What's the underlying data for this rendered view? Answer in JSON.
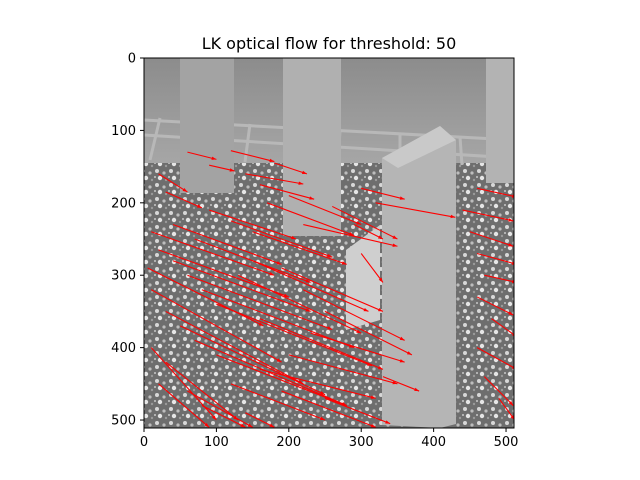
{
  "chart_data": {
    "type": "image-with-vector-overlay",
    "title": "LK optical flow for threshold: 50",
    "xlabel": "",
    "ylabel": "",
    "xlim": [
      0,
      511
    ],
    "ylim": [
      511,
      0
    ],
    "x_ticks": [
      0,
      100,
      200,
      300,
      400,
      500
    ],
    "y_ticks": [
      0,
      100,
      200,
      300,
      400,
      500
    ],
    "grid": false,
    "legend": "none",
    "arrow_color": "#ff0000",
    "background": "grayscale rendered scene: gravel ground, grid floor and square concrete pillars",
    "flow_field": [
      {
        "x": 60,
        "y": 130,
        "dx": 40,
        "dy": 10
      },
      {
        "x": 90,
        "y": 148,
        "dx": 35,
        "dy": 8
      },
      {
        "x": 120,
        "y": 128,
        "dx": 60,
        "dy": 15
      },
      {
        "x": 140,
        "y": 160,
        "dx": 80,
        "dy": 14
      },
      {
        "x": 160,
        "y": 175,
        "dx": 75,
        "dy": 20
      },
      {
        "x": 180,
        "y": 145,
        "dx": 45,
        "dy": 15
      },
      {
        "x": 20,
        "y": 160,
        "dx": 40,
        "dy": 25
      },
      {
        "x": 30,
        "y": 185,
        "dx": 50,
        "dy": 22
      },
      {
        "x": 300,
        "y": 180,
        "dx": 60,
        "dy": 15
      },
      {
        "x": 320,
        "y": 200,
        "dx": 110,
        "dy": 20
      },
      {
        "x": 460,
        "y": 180,
        "dx": 55,
        "dy": 12
      },
      {
        "x": 440,
        "y": 210,
        "dx": 70,
        "dy": 15
      },
      {
        "x": 450,
        "y": 240,
        "dx": 60,
        "dy": 20
      },
      {
        "x": 460,
        "y": 270,
        "dx": 55,
        "dy": 15
      },
      {
        "x": 470,
        "y": 300,
        "dx": 45,
        "dy": 10
      },
      {
        "x": 460,
        "y": 330,
        "dx": 50,
        "dy": 25
      },
      {
        "x": 480,
        "y": 360,
        "dx": 35,
        "dy": 25
      },
      {
        "x": 460,
        "y": 400,
        "dx": 55,
        "dy": 30
      },
      {
        "x": 470,
        "y": 440,
        "dx": 40,
        "dy": 40
      },
      {
        "x": 490,
        "y": 470,
        "dx": 22,
        "dy": 30
      },
      {
        "x": 90,
        "y": 210,
        "dx": 120,
        "dy": 40
      },
      {
        "x": 120,
        "y": 225,
        "dx": 140,
        "dy": 50
      },
      {
        "x": 150,
        "y": 240,
        "dx": 130,
        "dy": 45
      },
      {
        "x": 170,
        "y": 200,
        "dx": 120,
        "dy": 45
      },
      {
        "x": 200,
        "y": 190,
        "dx": 100,
        "dy": 40
      },
      {
        "x": 220,
        "y": 230,
        "dx": 130,
        "dy": 30
      },
      {
        "x": 260,
        "y": 205,
        "dx": 90,
        "dy": 45
      },
      {
        "x": 290,
        "y": 230,
        "dx": 40,
        "dy": 20
      },
      {
        "x": 300,
        "y": 270,
        "dx": 30,
        "dy": 40
      },
      {
        "x": 10,
        "y": 240,
        "dx": 170,
        "dy": 60
      },
      {
        "x": 20,
        "y": 265,
        "dx": 180,
        "dy": 65
      },
      {
        "x": 40,
        "y": 280,
        "dx": 190,
        "dy": 70
      },
      {
        "x": 60,
        "y": 300,
        "dx": 200,
        "dy": 75
      },
      {
        "x": 80,
        "y": 320,
        "dx": 210,
        "dy": 80
      },
      {
        "x": 100,
        "y": 340,
        "dx": 215,
        "dy": 85
      },
      {
        "x": 10,
        "y": 320,
        "dx": 180,
        "dy": 100
      },
      {
        "x": 30,
        "y": 350,
        "dx": 190,
        "dy": 100
      },
      {
        "x": 50,
        "y": 370,
        "dx": 200,
        "dy": 95
      },
      {
        "x": 70,
        "y": 390,
        "dx": 210,
        "dy": 90
      },
      {
        "x": 100,
        "y": 410,
        "dx": 180,
        "dy": 70
      },
      {
        "x": 10,
        "y": 400,
        "dx": 90,
        "dy": 100
      },
      {
        "x": 30,
        "y": 420,
        "dx": 100,
        "dy": 80
      },
      {
        "x": 20,
        "y": 450,
        "dx": 70,
        "dy": 60
      },
      {
        "x": 60,
        "y": 460,
        "dx": 90,
        "dy": 50
      },
      {
        "x": 120,
        "y": 450,
        "dx": 130,
        "dy": 50
      },
      {
        "x": 160,
        "y": 430,
        "dx": 160,
        "dy": 40
      },
      {
        "x": 200,
        "y": 410,
        "dx": 150,
        "dy": 40
      },
      {
        "x": 230,
        "y": 380,
        "dx": 130,
        "dy": 40
      },
      {
        "x": 250,
        "y": 350,
        "dx": 120,
        "dy": 60
      },
      {
        "x": 220,
        "y": 320,
        "dx": 140,
        "dy": 70
      },
      {
        "x": 190,
        "y": 290,
        "dx": 140,
        "dy": 60
      },
      {
        "x": 150,
        "y": 280,
        "dx": 160,
        "dy": 70
      },
      {
        "x": 130,
        "y": 300,
        "dx": 170,
        "dy": 80
      },
      {
        "x": 160,
        "y": 360,
        "dx": 170,
        "dy": 70
      },
      {
        "x": 190,
        "y": 460,
        "dx": 130,
        "dy": 50
      },
      {
        "x": 250,
        "y": 470,
        "dx": 90,
        "dy": 35
      },
      {
        "x": 40,
        "y": 230,
        "dx": 150,
        "dy": 55
      },
      {
        "x": 70,
        "y": 250,
        "dx": 160,
        "dy": 60
      },
      {
        "x": 5,
        "y": 290,
        "dx": 160,
        "dy": 80
      },
      {
        "x": 80,
        "y": 480,
        "dx": 60,
        "dy": 30
      },
      {
        "x": 140,
        "y": 490,
        "dx": 40,
        "dy": 20
      },
      {
        "x": 330,
        "y": 440,
        "dx": 50,
        "dy": 20
      }
    ]
  }
}
